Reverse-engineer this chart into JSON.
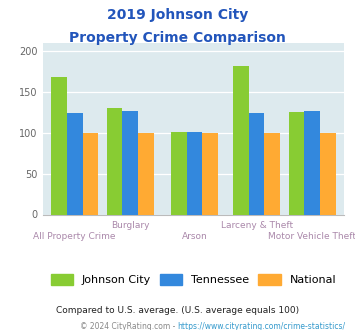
{
  "title_line1": "2019 Johnson City",
  "title_line2": "Property Crime Comparison",
  "title_color": "#2255bb",
  "categories": [
    "All Property Crime",
    "Burglary",
    "Arson",
    "Larceny & Theft",
    "Motor Vehicle Theft"
  ],
  "johnson_city": [
    168,
    130,
    101,
    182,
    125
  ],
  "tennessee": [
    124,
    127,
    101,
    124,
    127
  ],
  "national": [
    100,
    100,
    100,
    100,
    100
  ],
  "colors": {
    "johnson_city": "#88cc33",
    "tennessee": "#3388dd",
    "national": "#ffaa33"
  },
  "ylim": [
    0,
    210
  ],
  "yticks": [
    0,
    50,
    100,
    150,
    200
  ],
  "legend_labels": [
    "Johnson City",
    "Tennessee",
    "National"
  ],
  "footnote1": "Compared to U.S. average. (U.S. average equals 100)",
  "footnote2_prefix": "© 2024 CityRating.com - ",
  "footnote2_link": "https://www.cityrating.com/crime-statistics/",
  "footnote1_color": "#222222",
  "footnote2_color": "#888888",
  "footnote2_link_color": "#3399cc",
  "bg_color": "#ddeaee",
  "fig_bg_color": "#ffffff",
  "bar_width": 0.22,
  "xlabel_color": "#aa88aa",
  "upper_labels": [
    "",
    "Burglary",
    "",
    "Larceny & Theft",
    ""
  ],
  "lower_labels": [
    "All Property Crime",
    "",
    "Arson",
    "",
    "Motor Vehicle Theft"
  ]
}
